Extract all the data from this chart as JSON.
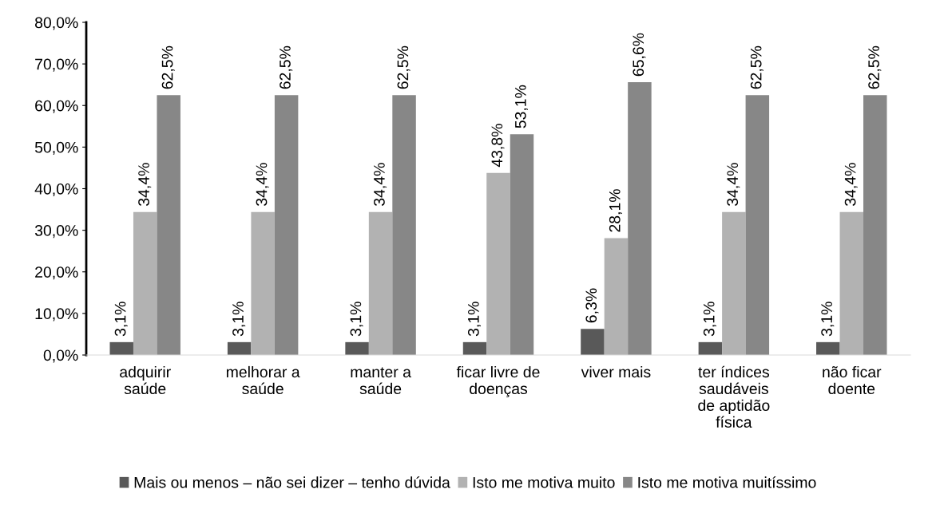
{
  "chart_data": {
    "type": "bar",
    "categories": [
      "adquirir\nsaúde",
      "melhorar a\nsaúde",
      "manter a\nsaúde",
      "ficar livre de\ndoenças",
      "viver mais",
      "ter índices\nsaudáveis\nde aptidão\nfísica",
      "não ficar\ndoente"
    ],
    "series": [
      {
        "name": "Mais ou menos – não sei dizer – tenho dúvida",
        "color": "#595959",
        "values": [
          3.1,
          3.1,
          3.1,
          3.1,
          6.3,
          3.1,
          3.1
        ],
        "value_labels": [
          "3,1%",
          "3,1%",
          "3,1%",
          "3,1%",
          "6,3%",
          "3,1%",
          "3,1%"
        ]
      },
      {
        "name": "Isto me motiva muito",
        "color": "#b2b2b2",
        "values": [
          34.4,
          34.4,
          34.4,
          43.8,
          28.1,
          34.4,
          34.4
        ],
        "value_labels": [
          "34,4%",
          "34,4%",
          "34,4%",
          "43,8%",
          "28,1%",
          "34,4%",
          "34,4%"
        ]
      },
      {
        "name": "Isto me motiva muitíssimo",
        "color": "#878787",
        "values": [
          62.5,
          62.5,
          62.5,
          53.1,
          65.6,
          62.5,
          62.5
        ],
        "value_labels": [
          "62,5%",
          "62,5%",
          "62,5%",
          "53,1%",
          "65,6%",
          "62,5%",
          "62,5%"
        ]
      }
    ],
    "ylim": [
      0,
      80
    ],
    "yticks": [
      {
        "value": 0,
        "label": "0,0%"
      },
      {
        "value": 10,
        "label": "10,0%"
      },
      {
        "value": 20,
        "label": "20,0%"
      },
      {
        "value": 30,
        "label": "30,0%"
      },
      {
        "value": 40,
        "label": "40,0%"
      },
      {
        "value": 50,
        "label": "50,0%"
      },
      {
        "value": 60,
        "label": "60,0%"
      },
      {
        "value": 70,
        "label": "70,0%"
      },
      {
        "value": 80,
        "label": "80,0%"
      }
    ],
    "grid": false,
    "legend": "bottom"
  }
}
